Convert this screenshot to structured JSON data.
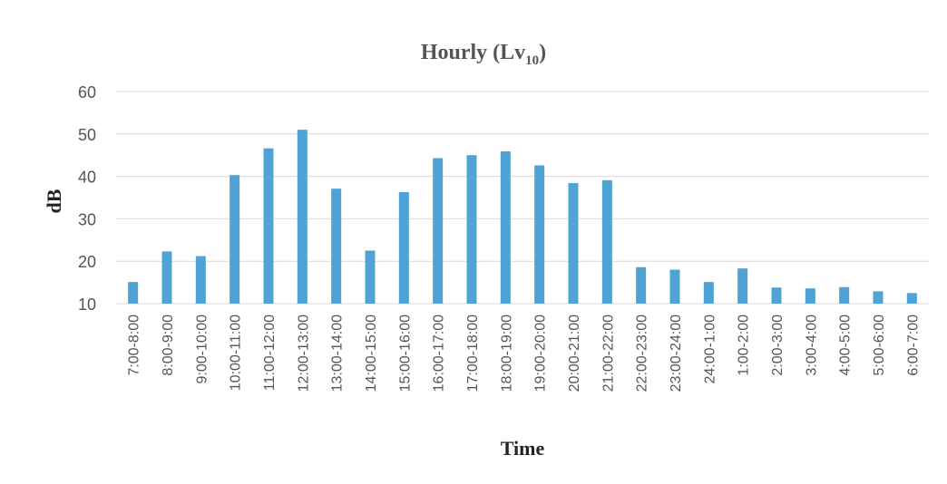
{
  "chart_data": {
    "type": "bar",
    "title": "Hourly (Lv",
    "title_subscript": "10",
    "title_close": ")",
    "xlabel": "Time",
    "ylabel": "dB",
    "ylim": [
      10,
      60
    ],
    "yticks": [
      10,
      20,
      30,
      40,
      50,
      60
    ],
    "grid": true,
    "bar_color": "#4fa3d6",
    "categories": [
      "7:00-8:00",
      "8:00-9:00",
      "9:00-10:00",
      "10:00-11:00",
      "11:00-12:00",
      "12:00-13:00",
      "13:00-14:00",
      "14:00-15:00",
      "15:00-16:00",
      "16:00-17:00",
      "17:00-18:00",
      "18:00-19:00",
      "19:00-20:00",
      "20:00-21:00",
      "21:00-22:00",
      "22:00-23:00",
      "23:00-24:00",
      "24:00-1:00",
      "1:00-2:00",
      "2:00-3:00",
      "3:00-4:00",
      "4:00-5:00",
      "5:00-6:00",
      "6:00-7:00"
    ],
    "values": [
      15.1,
      22.3,
      21.2,
      40.3,
      46.6,
      51.0,
      37.1,
      22.5,
      36.3,
      44.3,
      45.0,
      45.9,
      42.6,
      38.4,
      39.1,
      18.6,
      18.0,
      15.1,
      18.3,
      13.8,
      13.6,
      13.9,
      12.9,
      12.5
    ]
  }
}
